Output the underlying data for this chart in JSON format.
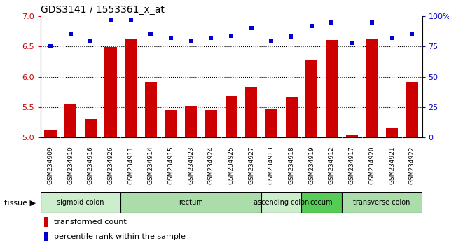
{
  "title": "GDS3141 / 1553361_x_at",
  "samples": [
    "GSM234909",
    "GSM234910",
    "GSM234916",
    "GSM234926",
    "GSM234911",
    "GSM234914",
    "GSM234915",
    "GSM234923",
    "GSM234924",
    "GSM234925",
    "GSM234927",
    "GSM234913",
    "GSM234918",
    "GSM234919",
    "GSM234912",
    "GSM234917",
    "GSM234920",
    "GSM234921",
    "GSM234922"
  ],
  "bar_values": [
    5.12,
    5.56,
    5.3,
    6.49,
    6.63,
    5.92,
    5.46,
    5.53,
    5.46,
    5.69,
    5.84,
    5.48,
    5.66,
    6.28,
    6.61,
    5.05,
    6.63,
    5.16,
    5.92
  ],
  "dot_values": [
    75,
    85,
    80,
    97,
    97,
    85,
    82,
    80,
    82,
    84,
    90,
    80,
    83,
    92,
    95,
    78,
    95,
    82,
    85
  ],
  "ylim_left": [
    5.0,
    7.0
  ],
  "ylim_right": [
    0,
    100
  ],
  "yticks_left": [
    5.0,
    5.5,
    6.0,
    6.5,
    7.0
  ],
  "yticks_right": [
    0,
    25,
    50,
    75,
    100
  ],
  "ytick_right_labels": [
    "0",
    "25",
    "50",
    "75",
    "100%"
  ],
  "bar_color": "#cc0000",
  "dot_color": "#0000cc",
  "tick_label_color_left": "#cc0000",
  "tick_label_color_right": "#0000cc",
  "xtick_bg_color": "#c8c8c8",
  "tissue_groups": [
    {
      "label": "sigmoid colon",
      "start": 0,
      "end": 3,
      "color": "#cceecc"
    },
    {
      "label": "rectum",
      "start": 4,
      "end": 10,
      "color": "#aaddaa"
    },
    {
      "label": "ascending colon",
      "start": 11,
      "end": 12,
      "color": "#cceecc"
    },
    {
      "label": "cecum",
      "start": 13,
      "end": 14,
      "color": "#55cc55"
    },
    {
      "label": "transverse colon",
      "start": 15,
      "end": 18,
      "color": "#aaddaa"
    }
  ],
  "legend_bar_label": "transformed count",
  "legend_dot_label": "percentile rank within the sample",
  "tissue_label": "tissue"
}
